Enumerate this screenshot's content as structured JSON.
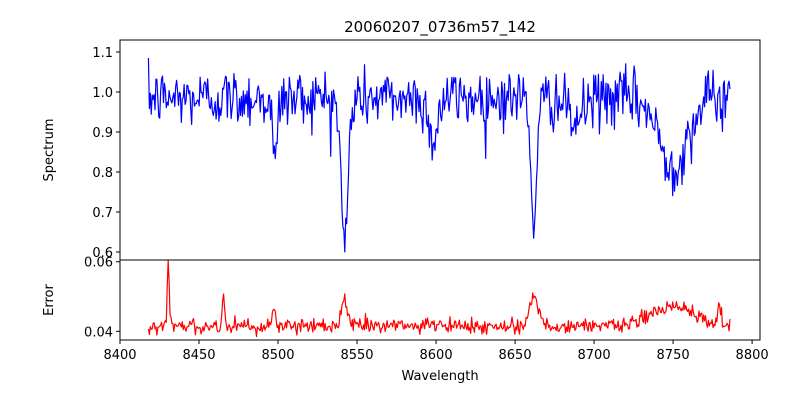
{
  "chart_data": [
    {
      "type": "line",
      "title": "20060207_0736m57_142",
      "xlabel": "",
      "ylabel": "Spectrum",
      "xlim": [
        8400,
        8805
      ],
      "ylim": [
        0.58,
        1.13
      ],
      "xticks": [
        8400,
        8450,
        8500,
        8550,
        8600,
        8650,
        8700,
        8750,
        8800
      ],
      "yticks": [
        0.6,
        0.7,
        0.8,
        0.9,
        1.0,
        1.1
      ],
      "ytick_labels": [
        "0.6",
        "0.7",
        "0.8",
        "0.9",
        "1.0",
        "1.1"
      ],
      "grid": false,
      "series": [
        {
          "name": "Spectrum",
          "color": "#0000ff",
          "x_start": 8418,
          "x_end": 8786,
          "points": 620,
          "continuum": 0.985,
          "noise": 0.048,
          "absorption_lines": [
            {
              "center": 8498.0,
              "depth": 0.17,
              "width": 1.4
            },
            {
              "center": 8542.1,
              "depth": 0.36,
              "width": 2.2
            },
            {
              "center": 8662.1,
              "depth": 0.3,
              "width": 2.0
            },
            {
              "center": 8750.0,
              "depth": 0.17,
              "width": 9.0
            },
            {
              "center": 8598.0,
              "depth": 0.1,
              "width": 3.0
            },
            {
              "center": 8688.0,
              "depth": 0.06,
              "width": 5.0
            }
          ],
          "extremes": {
            "max": 1.105,
            "min": 0.6,
            "min_at": 8542
          }
        }
      ]
    },
    {
      "type": "line",
      "title": "",
      "xlabel": "Wavelength",
      "ylabel": "Error",
      "xlim": [
        8400,
        8805
      ],
      "ylim": [
        0.0375,
        0.0605
      ],
      "xticks": [
        8400,
        8450,
        8500,
        8550,
        8600,
        8650,
        8700,
        8750,
        8800
      ],
      "xtick_labels": [
        "8400",
        "8450",
        "8500",
        "8550",
        "8600",
        "8650",
        "8700",
        "8750",
        "8800"
      ],
      "yticks": [
        0.04,
        0.06
      ],
      "ytick_labels": [
        "0.04",
        "0.06"
      ],
      "grid": false,
      "series": [
        {
          "name": "Error",
          "color": "#ff0000",
          "x_start": 8418,
          "x_end": 8786,
          "points": 620,
          "baseline": 0.0415,
          "noise": 0.0011,
          "features": [
            {
              "center": 8430.5,
              "height": 0.019,
              "width": 0.6
            },
            {
              "center": 8465.5,
              "height": 0.0095,
              "width": 0.7
            },
            {
              "center": 8497.5,
              "height": 0.006,
              "width": 0.8
            },
            {
              "center": 8542.0,
              "height": 0.0085,
              "width": 2.0
            },
            {
              "center": 8662.0,
              "height": 0.008,
              "width": 3.0
            },
            {
              "center": 8750.0,
              "height": 0.0055,
              "width": 14.0
            },
            {
              "center": 8779.0,
              "height": 0.0055,
              "width": 0.8
            }
          ],
          "extremes": {
            "max": 0.0605,
            "min": 0.0385
          }
        }
      ]
    }
  ]
}
